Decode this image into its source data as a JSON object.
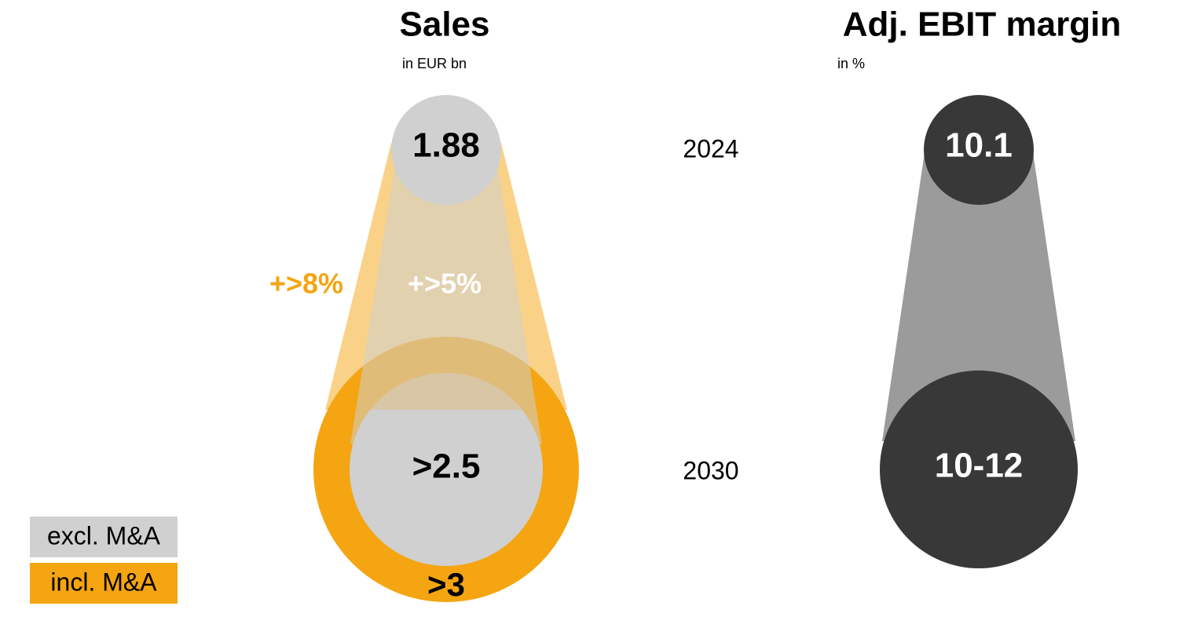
{
  "sales": {
    "title": "Sales",
    "unit": "in EUR bn",
    "value_2024": "1.88",
    "growth_incl": "+>8%",
    "growth_excl": "+>5%",
    "value_2030_excl": ">2.5",
    "value_2030_incl": ">3"
  },
  "years": [
    "2024",
    "2030"
  ],
  "ebit": {
    "title": "Adj. EBIT margin",
    "unit": "in %",
    "value_2024": "10.1",
    "value_2030": "10-12"
  },
  "legend": [
    "excl. M&A",
    "incl. M&A"
  ]
}
